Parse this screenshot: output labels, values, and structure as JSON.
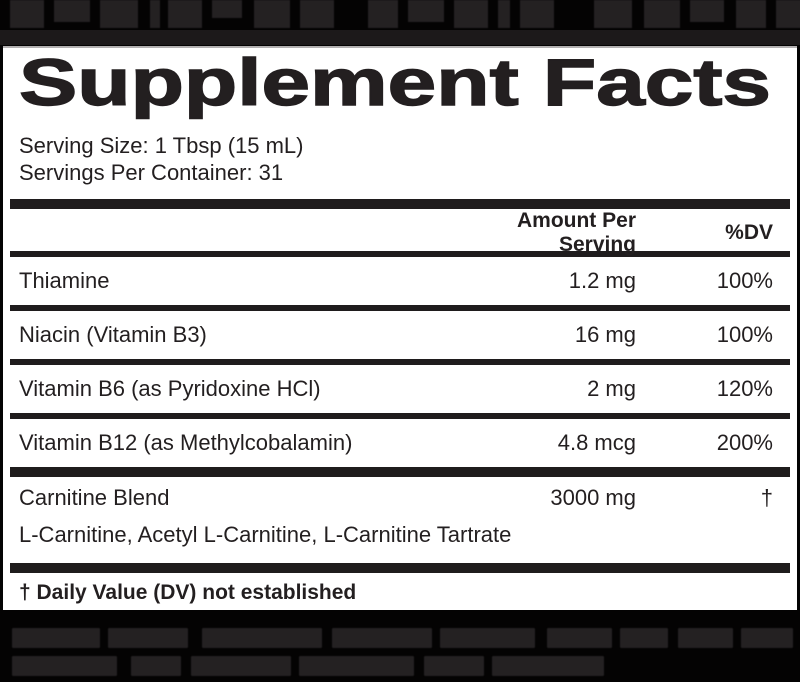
{
  "panel": {
    "title": "Supplement Facts",
    "serving_size": "Serving Size: 1 Tbsp (15 mL)",
    "servings_per_container": "Servings Per Container: 31",
    "header": {
      "amount": "Amount Per Serving",
      "dv": "%DV"
    },
    "rows": [
      {
        "name": "Thiamine",
        "amount": "1.2 mg",
        "dv": "100%"
      },
      {
        "name": "Niacin (Vitamin B3)",
        "amount": "16 mg",
        "dv": "100%"
      },
      {
        "name": "Vitamin B6 (as Pyridoxine HCl)",
        "amount": "2 mg",
        "dv": "120%"
      },
      {
        "name": "Vitamin B12 (as Methylcobalamin)",
        "amount": "4.8 mcg",
        "dv": "200%"
      }
    ],
    "blend": {
      "name": "Carnitine Blend",
      "amount": "3000 mg",
      "dv": "†",
      "ingredients": "L-Carnitine, Acetyl L-Carnitine, L-Carnitine Tartrate"
    },
    "footnote": "† Daily Value (DV) not established"
  },
  "colors": {
    "text": "#231f20",
    "rule_bar": "#1f1c1d",
    "page_background": "#040303",
    "panel_background": "#ffffff",
    "decor_block": "#242122"
  },
  "decor": {
    "top_fragments": [
      [
        34,
        28,
        10
      ],
      [
        36,
        22,
        10
      ],
      [
        38,
        28,
        12
      ],
      [
        10,
        28,
        8
      ],
      [
        34,
        28,
        10
      ],
      [
        30,
        18,
        12
      ],
      [
        36,
        28,
        10
      ],
      [
        34,
        28,
        34
      ],
      [
        30,
        28,
        10
      ],
      [
        36,
        22,
        10
      ],
      [
        34,
        28,
        10
      ],
      [
        12,
        28,
        10
      ],
      [
        34,
        28,
        40
      ],
      [
        38,
        28,
        12
      ],
      [
        36,
        28,
        10
      ],
      [
        34,
        22,
        12
      ],
      [
        30,
        28,
        10
      ],
      [
        34,
        28,
        0
      ]
    ],
    "bottom_row_1": [
      [
        88,
        20,
        8
      ],
      [
        80,
        20,
        14
      ],
      [
        120,
        20,
        10
      ],
      [
        100,
        20,
        8
      ],
      [
        95,
        20,
        12
      ],
      [
        65,
        20,
        8
      ],
      [
        48,
        20,
        10
      ],
      [
        55,
        20,
        8
      ],
      [
        52,
        20,
        0
      ]
    ],
    "bottom_row_2": [
      [
        105,
        20,
        14
      ],
      [
        50,
        20,
        10
      ],
      [
        100,
        20,
        8
      ],
      [
        115,
        20,
        10
      ],
      [
        60,
        20,
        8
      ],
      [
        112,
        20,
        0
      ]
    ]
  }
}
